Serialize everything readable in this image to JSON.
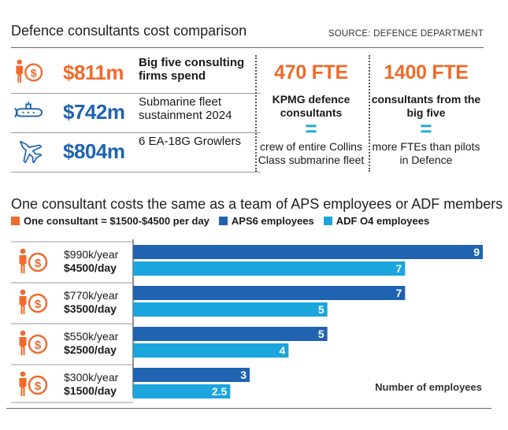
{
  "header": {
    "title": "Defence consultants cost comparison",
    "source": "SOURCE: DEFENCE DEPARTMENT"
  },
  "stats": [
    {
      "icon": "consultant-dollar-icon",
      "amount": "$811m",
      "description": "Big five consulting firms spend",
      "color": "#ef6a2b"
    },
    {
      "icon": "submarine-icon",
      "amount": "$742m",
      "description": "Submarine fleet sustainment 2024",
      "color": "#1f63b1"
    },
    {
      "icon": "fighter-jet-icon",
      "amount": "$804m",
      "description": "6 EA-18G Growlers",
      "color": "#1f63b1"
    }
  ],
  "fte_blocks": [
    {
      "value": "470 FTE",
      "subtitle": "KPMG defence consultants",
      "equals": "=",
      "note": "crew of entire Collins Class submarine fleet"
    },
    {
      "value": "1400 FTE",
      "subtitle": "consultants from the big five",
      "equals": "=",
      "note": "more FTEs than pilots in Defence"
    }
  ],
  "section": {
    "title": "One consultant costs the same as a team of APS employees or ADF members"
  },
  "colors": {
    "consultant": "#ef6a2b",
    "aps6": "#1f63b1",
    "adf": "#1aa5dc"
  },
  "chart_data": {
    "type": "bar",
    "orientation": "horizontal",
    "legend": [
      {
        "label": "One consultant = $1500-$4500 per day",
        "color": "#ef6a2b"
      },
      {
        "label": "APS6 employees",
        "color": "#1f63b1"
      },
      {
        "label": "ADF O4 employees",
        "color": "#1aa5dc"
      }
    ],
    "categories": [
      {
        "yearly": "$990k/year",
        "daily": "$4500/day"
      },
      {
        "yearly": "$770k/year",
        "daily": "$3500/day"
      },
      {
        "yearly": "$550k/year",
        "daily": "$2500/day"
      },
      {
        "yearly": "$300k/year",
        "daily": "$1500/day"
      }
    ],
    "series": [
      {
        "name": "APS6 employees",
        "color": "#1f63b1",
        "values": [
          9,
          7,
          5,
          3
        ],
        "labels": [
          "9",
          "7",
          "5",
          "3"
        ]
      },
      {
        "name": "ADF O4 employees",
        "color": "#1aa5dc",
        "values": [
          7,
          5,
          4,
          2.5
        ],
        "labels": [
          "7",
          "5",
          "4",
          "2.5"
        ]
      }
    ],
    "xlim": [
      0,
      9
    ],
    "xlabel": "Number of employees",
    "grid": false
  }
}
